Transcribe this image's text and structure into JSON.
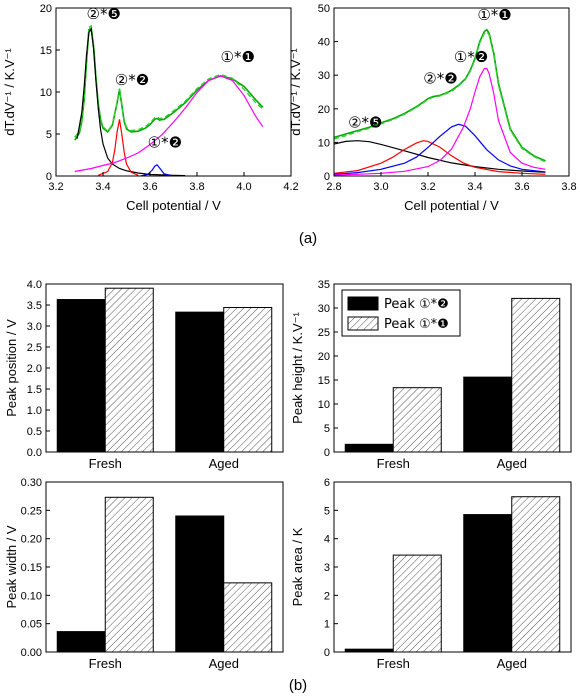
{
  "panel_labels": {
    "a": "(a)",
    "b": "(b)"
  },
  "chart_data": [
    {
      "id": "a-left",
      "type": "line",
      "xlabel": "Cell potential / V",
      "ylabel": "dT.dV⁻¹ / K.V⁻¹",
      "xlim": [
        3.2,
        4.2
      ],
      "ylim": [
        0,
        22.5
      ],
      "xticks": [
        "3.2",
        "3.4",
        "3.6",
        "3.8",
        "4.0",
        "4.2"
      ],
      "yticks": [
        "0",
        "5",
        "10",
        "15",
        "20"
      ],
      "annotations": [
        {
          "text": "②*❺",
          "x": 3.33,
          "y": 21.0
        },
        {
          "text": "②*❷",
          "x": 3.45,
          "y": 12.2
        },
        {
          "text": "①*❷",
          "x": 3.59,
          "y": 3.8
        },
        {
          "text": "①*❶",
          "x": 3.9,
          "y": 15.3
        }
      ],
      "series": [
        {
          "color": "#00aa00",
          "width": 1.6,
          "dash": "",
          "x": [
            3.28,
            3.3,
            3.31,
            3.32,
            3.33,
            3.34,
            3.35,
            3.36,
            3.37,
            3.38,
            3.39,
            3.4,
            3.42,
            3.44,
            3.46,
            3.47,
            3.48,
            3.49,
            3.5,
            3.52,
            3.55,
            3.58,
            3.6,
            3.62,
            3.63,
            3.64,
            3.66,
            3.7,
            3.75,
            3.8,
            3.85,
            3.9,
            3.95,
            4.0,
            4.05,
            4.08
          ],
          "y": [
            4.8,
            5.8,
            7.3,
            10.2,
            15.2,
            19.6,
            19.8,
            17.4,
            13.2,
            9.6,
            7.5,
            6.4,
            5.9,
            6.8,
            9.8,
            11.6,
            9.5,
            7.3,
            6.3,
            5.9,
            6.0,
            6.4,
            6.9,
            7.6,
            7.7,
            7.5,
            7.6,
            8.5,
            9.8,
            11.5,
            12.8,
            13.4,
            13.0,
            12.0,
            10.2,
            9.2
          ]
        },
        {
          "color": "#33cc33",
          "width": 1.4,
          "dash": "5,3",
          "x": [
            3.28,
            3.3,
            3.31,
            3.32,
            3.33,
            3.34,
            3.35,
            3.36,
            3.37,
            3.38,
            3.39,
            3.4,
            3.42,
            3.44,
            3.46,
            3.47,
            3.48,
            3.49,
            3.5,
            3.52,
            3.55,
            3.58,
            3.6,
            3.62,
            3.63,
            3.64,
            3.66,
            3.7,
            3.75,
            3.8,
            3.85,
            3.9,
            3.95,
            4.0,
            4.05,
            4.08
          ],
          "y": [
            5.2,
            6.0,
            7.6,
            10.5,
            15.5,
            19.9,
            20.1,
            17.6,
            13.4,
            9.8,
            7.7,
            6.6,
            6.0,
            6.9,
            9.9,
            11.7,
            9.7,
            7.5,
            6.5,
            6.1,
            6.2,
            6.6,
            7.1,
            7.8,
            7.9,
            7.7,
            7.8,
            8.7,
            10.0,
            11.7,
            13.0,
            13.6,
            13.1,
            11.6,
            9.8,
            9.0
          ]
        },
        {
          "color": "#000000",
          "width": 1.2,
          "dash": "",
          "x": [
            3.29,
            3.31,
            3.32,
            3.33,
            3.34,
            3.35,
            3.36,
            3.37,
            3.38,
            3.39,
            3.4,
            3.42,
            3.44,
            3.47,
            3.5,
            3.55,
            3.6,
            3.65,
            3.7,
            3.75
          ],
          "y": [
            5.0,
            8.5,
            12.0,
            16.2,
            19.2,
            19.7,
            17.0,
            12.8,
            9.0,
            6.2,
            4.3,
            2.4,
            1.6,
            1.0,
            0.7,
            0.4,
            0.2,
            0.15,
            0.1,
            0.05
          ]
        },
        {
          "color": "#ff0000",
          "width": 1.2,
          "dash": "",
          "x": [
            3.38,
            3.42,
            3.44,
            3.45,
            3.46,
            3.47,
            3.48,
            3.49,
            3.5,
            3.52,
            3.55
          ],
          "y": [
            0.1,
            0.6,
            1.8,
            3.5,
            5.9,
            7.6,
            5.6,
            3.2,
            1.6,
            0.5,
            0.1
          ]
        },
        {
          "color": "#0000ff",
          "width": 1.2,
          "dash": "",
          "x": [
            3.56,
            3.59,
            3.61,
            3.62,
            3.63,
            3.64,
            3.66,
            3.7
          ],
          "y": [
            0.0,
            0.2,
            0.8,
            1.3,
            1.5,
            1.1,
            0.3,
            0.0
          ]
        },
        {
          "color": "#ff00ff",
          "width": 1.2,
          "dash": "",
          "x": [
            3.28,
            3.35,
            3.4,
            3.45,
            3.5,
            3.55,
            3.6,
            3.65,
            3.7,
            3.75,
            3.8,
            3.85,
            3.9,
            3.95,
            4.0,
            4.05,
            4.08
          ],
          "y": [
            0.6,
            1.0,
            1.4,
            1.8,
            2.4,
            3.1,
            4.2,
            5.5,
            7.2,
            9.1,
            11.2,
            12.8,
            13.4,
            12.8,
            10.8,
            8.0,
            6.6
          ]
        }
      ]
    },
    {
      "id": "a-right",
      "type": "line",
      "xlabel": "Cell potential / V",
      "ylabel": "dT.dV⁻¹ / K.V⁻¹",
      "xlim": [
        2.8,
        3.8
      ],
      "ylim": [
        0,
        50
      ],
      "xticks": [
        "2.8",
        "3.0",
        "3.2",
        "3.4",
        "3.6",
        "3.8"
      ],
      "yticks": [
        "0",
        "10",
        "20",
        "30",
        "40",
        "50"
      ],
      "annotations": [
        {
          "text": "②*❺",
          "x": 2.86,
          "y": 14.5
        },
        {
          "text": "②*❷",
          "x": 3.18,
          "y": 27.5
        },
        {
          "text": "①*❷",
          "x": 3.31,
          "y": 34.0
        },
        {
          "text": "①*❶",
          "x": 3.41,
          "y": 46.5
        }
      ],
      "series": [
        {
          "color": "#00aa00",
          "width": 1.6,
          "dash": "",
          "x": [
            2.8,
            2.85,
            2.9,
            2.95,
            3.0,
            3.05,
            3.1,
            3.15,
            3.18,
            3.2,
            3.22,
            3.25,
            3.28,
            3.3,
            3.33,
            3.36,
            3.38,
            3.4,
            3.42,
            3.44,
            3.45,
            3.46,
            3.48,
            3.5,
            3.55,
            3.6,
            3.65,
            3.7
          ],
          "y": [
            11.5,
            12.5,
            13.5,
            14.5,
            15.8,
            17.0,
            18.6,
            20.6,
            22.0,
            23.0,
            23.6,
            24.0,
            24.8,
            25.5,
            27.0,
            29.0,
            31.5,
            35.0,
            40.0,
            43.0,
            43.5,
            42.5,
            36.5,
            27.5,
            14.0,
            8.5,
            6.0,
            4.5
          ]
        },
        {
          "color": "#33cc33",
          "width": 1.4,
          "dash": "5,3",
          "x": [
            2.8,
            2.85,
            2.9,
            2.95,
            3.0,
            3.05,
            3.1,
            3.15,
            3.18,
            3.2,
            3.22,
            3.25,
            3.28,
            3.3,
            3.33,
            3.36,
            3.38,
            3.4,
            3.42,
            3.44,
            3.45,
            3.46,
            3.48,
            3.5,
            3.55,
            3.6,
            3.65,
            3.7
          ],
          "y": [
            11.0,
            12.0,
            13.2,
            14.2,
            15.5,
            16.8,
            18.4,
            20.4,
            21.8,
            22.8,
            23.4,
            23.8,
            24.6,
            25.2,
            26.8,
            28.8,
            31.2,
            34.6,
            39.6,
            42.5,
            43.0,
            42.0,
            36.0,
            27.0,
            13.6,
            8.2,
            5.8,
            4.2
          ]
        },
        {
          "color": "#000000",
          "width": 1.2,
          "dash": "",
          "x": [
            2.8,
            2.85,
            2.9,
            2.95,
            3.0,
            3.1,
            3.2,
            3.3,
            3.4,
            3.5,
            3.6,
            3.7
          ],
          "y": [
            9.5,
            10.3,
            10.5,
            10.2,
            9.4,
            7.5,
            5.5,
            3.9,
            2.8,
            2.0,
            1.5,
            1.1
          ]
        },
        {
          "color": "#ff0000",
          "width": 1.2,
          "dash": "",
          "x": [
            2.8,
            2.9,
            3.0,
            3.05,
            3.1,
            3.15,
            3.18,
            3.2,
            3.25,
            3.3,
            3.35,
            3.4,
            3.5,
            3.6,
            3.7
          ],
          "y": [
            0.8,
            1.6,
            3.8,
            5.6,
            7.9,
            9.8,
            10.5,
            10.3,
            8.6,
            6.0,
            3.9,
            2.6,
            1.3,
            0.8,
            0.5
          ]
        },
        {
          "color": "#0000ff",
          "width": 1.2,
          "dash": "",
          "x": [
            2.8,
            2.9,
            3.0,
            3.1,
            3.15,
            3.2,
            3.25,
            3.3,
            3.33,
            3.36,
            3.4,
            3.45,
            3.5,
            3.55,
            3.6,
            3.7
          ],
          "y": [
            0.5,
            1.0,
            2.0,
            3.8,
            5.6,
            8.5,
            11.8,
            14.6,
            15.4,
            14.8,
            12.0,
            7.8,
            4.8,
            3.0,
            2.0,
            1.2
          ]
        },
        {
          "color": "#ff00ff",
          "width": 1.2,
          "dash": "",
          "x": [
            2.8,
            2.9,
            3.0,
            3.1,
            3.2,
            3.25,
            3.3,
            3.35,
            3.38,
            3.4,
            3.42,
            3.44,
            3.45,
            3.46,
            3.48,
            3.5,
            3.55,
            3.6,
            3.65,
            3.7
          ],
          "y": [
            0.3,
            0.5,
            0.8,
            1.4,
            2.8,
            4.6,
            8.0,
            14.5,
            20.0,
            25.0,
            29.5,
            32.0,
            32.0,
            30.5,
            24.5,
            16.5,
            7.0,
            3.8,
            2.6,
            2.0
          ]
        }
      ]
    },
    {
      "id": "b-position",
      "type": "bar",
      "categories": [
        "Fresh",
        "Aged"
      ],
      "ylabel": "Peak position / V",
      "ylim": [
        0,
        4.0
      ],
      "yticks": [
        "0.0",
        "0.5",
        "1.0",
        "1.5",
        "2.0",
        "2.5",
        "3.0",
        "3.5",
        "4.0"
      ],
      "series": [
        {
          "name": "Peak ①*❷",
          "fill": "solid",
          "values": [
            3.63,
            3.33
          ]
        },
        {
          "name": "Peak ①*❶",
          "fill": "hatch",
          "values": [
            3.9,
            3.44
          ]
        }
      ]
    },
    {
      "id": "b-height",
      "type": "bar",
      "categories": [
        "Fresh",
        "Aged"
      ],
      "ylabel": "Peak height / K.V⁻¹",
      "ylim": [
        0,
        35
      ],
      "yticks": [
        "0",
        "5",
        "10",
        "15",
        "20",
        "25",
        "30",
        "35"
      ],
      "legend": "top-left",
      "series": [
        {
          "name": "Peak ①*❷",
          "fill": "solid",
          "values": [
            1.6,
            15.6
          ]
        },
        {
          "name": "Peak ①*❶",
          "fill": "hatch",
          "values": [
            13.4,
            32.0
          ]
        }
      ]
    },
    {
      "id": "b-width",
      "type": "bar",
      "categories": [
        "Fresh",
        "Aged"
      ],
      "ylabel": "Peak width / V",
      "ylim": [
        0,
        0.3
      ],
      "yticks": [
        "0.00",
        "0.05",
        "0.10",
        "0.15",
        "0.20",
        "0.25",
        "0.30"
      ],
      "series": [
        {
          "name": "Peak ①*❷",
          "fill": "solid",
          "values": [
            0.036,
            0.24
          ]
        },
        {
          "name": "Peak ①*❶",
          "fill": "hatch",
          "values": [
            0.273,
            0.122
          ]
        }
      ]
    },
    {
      "id": "b-area",
      "type": "bar",
      "categories": [
        "Fresh",
        "Aged"
      ],
      "ylabel": "Peak area / K",
      "ylim": [
        0,
        6
      ],
      "yticks": [
        "0",
        "1",
        "2",
        "3",
        "4",
        "5",
        "6"
      ],
      "series": [
        {
          "name": "Peak ①*❷",
          "fill": "solid",
          "values": [
            0.1,
            4.85
          ]
        },
        {
          "name": "Peak ①*❶",
          "fill": "hatch",
          "values": [
            3.42,
            5.48
          ]
        }
      ]
    }
  ]
}
